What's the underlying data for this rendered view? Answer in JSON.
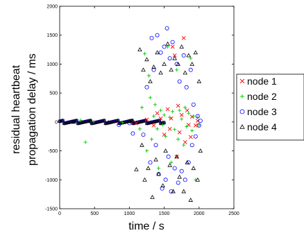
{
  "chart_data": {
    "type": "scatter",
    "xlabel": "time / s",
    "ylabel_lines": [
      "residual heartbeat",
      "propagation delay / ms"
    ],
    "xlim": [
      0,
      2500
    ],
    "ylim": [
      -1500,
      2000
    ],
    "xticks": [
      "0",
      "500",
      "1000",
      "1500",
      "2000",
      "2500"
    ],
    "yticks": [
      "-1500",
      "-1000",
      "-500",
      "0",
      "500",
      "1000",
      "1500",
      "2000"
    ],
    "grid": false,
    "legend_position": "right",
    "series": [
      {
        "name": "node 1",
        "marker": "x",
        "color": "#ff0000",
        "points": [
          [
            1100,
            -20
          ],
          [
            1250,
            40
          ],
          [
            1350,
            -60
          ],
          [
            1400,
            150
          ],
          [
            1450,
            60
          ],
          [
            1500,
            -220
          ],
          [
            1550,
            220
          ],
          [
            1580,
            -120
          ],
          [
            1600,
            60
          ],
          [
            1620,
            1300
          ],
          [
            1650,
            1150
          ],
          [
            1680,
            -600
          ],
          [
            1700,
            280
          ],
          [
            1720,
            -180
          ],
          [
            1750,
            120
          ],
          [
            1780,
            1450
          ],
          [
            1800,
            -350
          ],
          [
            1830,
            200
          ],
          [
            1850,
            -50
          ],
          [
            1880,
            -260
          ],
          [
            1900,
            90
          ],
          [
            1950,
            -60
          ],
          [
            1980,
            20
          ]
        ]
      },
      {
        "name": "node 2",
        "marker": "+",
        "color": "#00cc00",
        "points": [
          [
            300,
            30
          ],
          [
            370,
            -350
          ],
          [
            480,
            0
          ],
          [
            900,
            -10
          ],
          [
            1150,
            -120
          ],
          [
            1180,
            250
          ],
          [
            1220,
            1180
          ],
          [
            1250,
            -500
          ],
          [
            1280,
            800
          ],
          [
            1300,
            420
          ],
          [
            1320,
            -300
          ],
          [
            1350,
            100
          ],
          [
            1370,
            300
          ],
          [
            1400,
            -120
          ],
          [
            1420,
            -800
          ],
          [
            1450,
            200
          ],
          [
            1480,
            -50
          ],
          [
            1500,
            120
          ],
          [
            1520,
            -250
          ],
          [
            1550,
            1300
          ],
          [
            1580,
            80
          ],
          [
            1600,
            -700
          ],
          [
            1620,
            180
          ],
          [
            1650,
            -130
          ],
          [
            1680,
            900
          ],
          [
            1700,
            -300
          ],
          [
            1720,
            200
          ],
          [
            1750,
            50
          ],
          [
            1780,
            -400
          ],
          [
            1800,
            250
          ],
          [
            1820,
            -80
          ],
          [
            1850,
            150
          ],
          [
            1880,
            1100
          ],
          [
            1900,
            -150
          ],
          [
            1920,
            100
          ],
          [
            1950,
            -1000
          ],
          [
            1980,
            80
          ],
          [
            2000,
            -50
          ]
        ]
      },
      {
        "name": "node 3",
        "marker": "o",
        "color": "#0000ff",
        "points": [
          [
            850,
            -50
          ],
          [
            1000,
            -20
          ],
          [
            1050,
            -200
          ],
          [
            1200,
            -220
          ],
          [
            1250,
            600
          ],
          [
            1300,
            -700
          ],
          [
            1320,
            1450
          ],
          [
            1350,
            900
          ],
          [
            1380,
            -400
          ],
          [
            1400,
            1500
          ],
          [
            1420,
            -900
          ],
          [
            1450,
            1200
          ],
          [
            1470,
            -1150
          ],
          [
            1500,
            1300
          ],
          [
            1520,
            -1000
          ],
          [
            1540,
            1620
          ],
          [
            1560,
            -600
          ],
          [
            1580,
            1100
          ],
          [
            1600,
            -1200
          ],
          [
            1620,
            1380
          ],
          [
            1650,
            -800
          ],
          [
            1680,
            1000
          ],
          [
            1700,
            -1050
          ],
          [
            1720,
            700
          ],
          [
            1750,
            -850
          ],
          [
            1780,
            1150
          ],
          [
            1800,
            -1000
          ],
          [
            1820,
            600
          ],
          [
            1850,
            -700
          ],
          [
            1880,
            900
          ],
          [
            1900,
            -400
          ],
          [
            1920,
            300
          ],
          [
            1950,
            -250
          ],
          [
            1980,
            100
          ],
          [
            2000,
            -60
          ],
          [
            2020,
            20
          ]
        ]
      },
      {
        "name": "node 4",
        "marker": "triangle",
        "color": "#000000",
        "points": [
          [
            200,
            0
          ],
          [
            450,
            10
          ],
          [
            700,
            -10
          ],
          [
            1000,
            10
          ],
          [
            1050,
            20
          ],
          [
            1100,
            -820
          ],
          [
            1150,
            1250
          ],
          [
            1180,
            -400
          ],
          [
            1200,
            900
          ],
          [
            1220,
            -1000
          ],
          [
            1250,
            1080
          ],
          [
            1270,
            -800
          ],
          [
            1300,
            700
          ],
          [
            1330,
            -1300
          ],
          [
            1350,
            950
          ],
          [
            1380,
            -650
          ],
          [
            1400,
            1200
          ],
          [
            1420,
            -900
          ],
          [
            1450,
            850
          ],
          [
            1480,
            -1100
          ],
          [
            1500,
            1000
          ],
          [
            1520,
            -500
          ],
          [
            1550,
            1350
          ],
          [
            1580,
            -750
          ],
          [
            1600,
            900
          ],
          [
            1630,
            -1200
          ],
          [
            1650,
            1100
          ],
          [
            1680,
            -600
          ],
          [
            1700,
            1000
          ],
          [
            1720,
            -950
          ],
          [
            1750,
            1300
          ],
          [
            1780,
            -1200
          ],
          [
            1800,
            850
          ],
          [
            1830,
            -700
          ],
          [
            1850,
            1150
          ],
          [
            1880,
            -1350
          ],
          [
            1900,
            1000
          ],
          [
            1920,
            -800
          ],
          [
            1950,
            1200
          ],
          [
            1980,
            -1000
          ],
          [
            2000,
            700
          ],
          [
            2020,
            -500
          ]
        ]
      }
    ]
  }
}
